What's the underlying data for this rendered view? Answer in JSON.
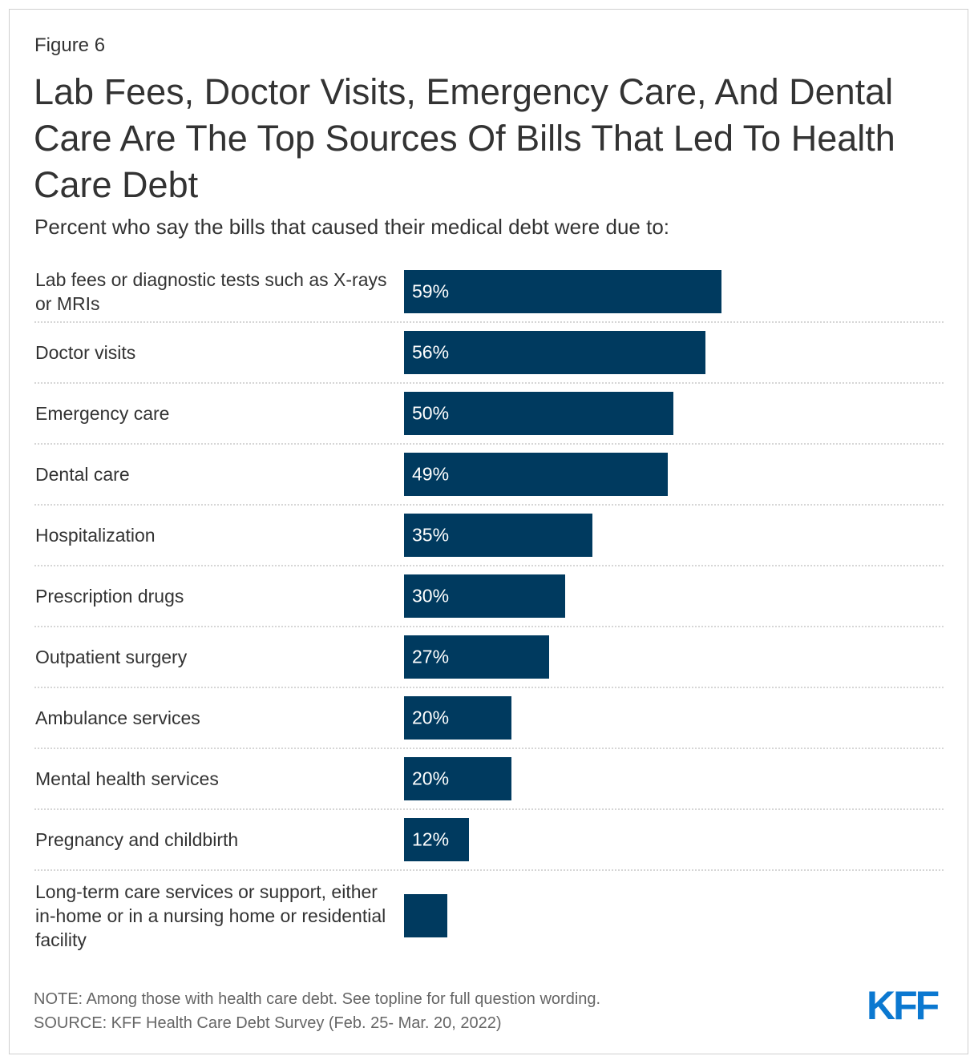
{
  "figure_label": "Figure 6",
  "chart_data": {
    "type": "bar",
    "orientation": "horizontal",
    "title": "Lab Fees, Doctor Visits, Emergency Care, And Dental Care Are The Top Sources Of Bills That Led To Health Care Debt",
    "subtitle": "Percent who say the bills that caused their medical debt were due to:",
    "categories": [
      "Lab fees or diagnostic tests such as X-rays or MRIs",
      "Doctor visits",
      "Emergency care",
      "Dental care",
      "Hospitalization",
      "Prescription drugs",
      "Outpatient surgery",
      "Ambulance services",
      "Mental health services",
      "Pregnancy and childbirth",
      "Long-term care services or support, either in-home or in a nursing home or residential facility"
    ],
    "values": [
      59,
      56,
      50,
      49,
      35,
      30,
      27,
      20,
      20,
      12,
      8
    ],
    "labels": [
      "59%",
      "56%",
      "50%",
      "49%",
      "35%",
      "30%",
      "27%",
      "20%",
      "20%",
      "12%",
      ""
    ],
    "xlim": [
      0,
      100
    ],
    "bar_color": "#003a5f",
    "grid": false
  },
  "footer": {
    "note": "NOTE: Among those with health care debt. See topline for full question wording.",
    "source": "SOURCE: KFF Health Care Debt Survey (Feb. 25- Mar. 20, 2022)",
    "logo": "KFF",
    "logo_color": "#0b78d0"
  }
}
